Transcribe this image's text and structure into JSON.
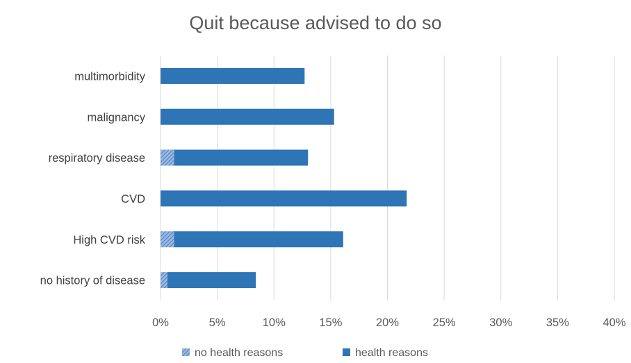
{
  "chart_data": {
    "type": "bar",
    "orientation": "horizontal",
    "stacked": true,
    "title": "Quit because advised to do so",
    "xlabel": "",
    "ylabel": "",
    "xlim": [
      0,
      40
    ],
    "x_ticks": [
      "0%",
      "5%",
      "10%",
      "15%",
      "20%",
      "25%",
      "30%",
      "35%",
      "40%"
    ],
    "categories": [
      "multimorbidity",
      "malignancy",
      "respiratory disease",
      "CVD",
      "High CVD risk",
      "no history of disease"
    ],
    "series": [
      {
        "name": "no health reasons",
        "values": [
          0,
          0,
          1.2,
          0,
          1.2,
          0.6
        ]
      },
      {
        "name": "health reasons",
        "values": [
          12.7,
          15.3,
          11.8,
          21.7,
          14.9,
          7.8
        ]
      }
    ],
    "grid": true,
    "legend_position": "bottom",
    "colors": {
      "health reasons": "#2e75b6",
      "no health reasons": "#8faadc",
      "grid": "#d9d9d9"
    }
  }
}
